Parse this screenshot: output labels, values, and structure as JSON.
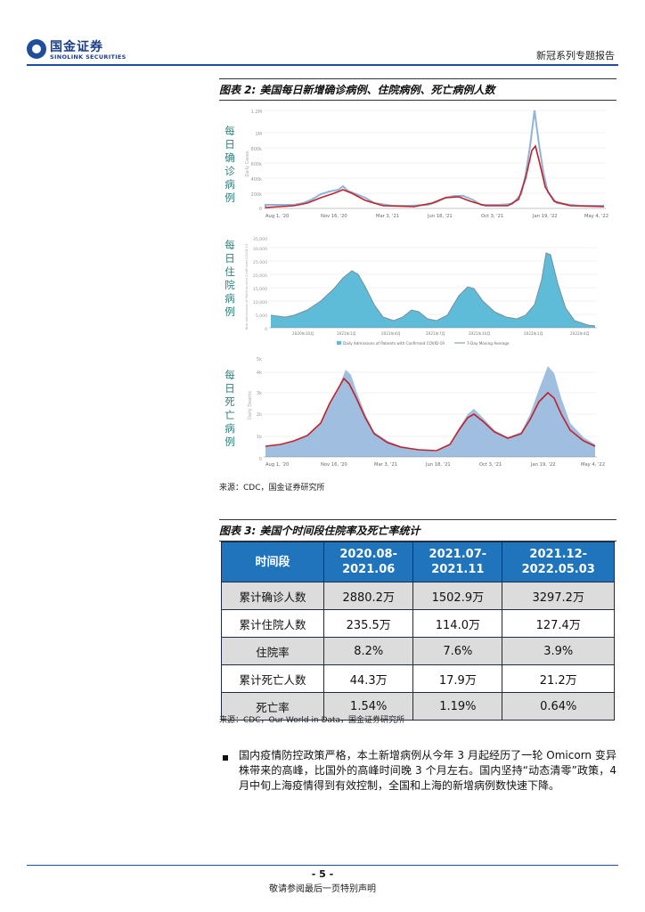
{
  "header": {
    "company_cn": "国金证券",
    "company_en": "SINOLINK SECURITIES",
    "series": "新冠系列专题报告"
  },
  "figure2": {
    "title": "图表 2:  美国每日新增确诊病例、住院病例、死亡病例人数",
    "source": "来源：CDC，国金证券研究所",
    "panels": [
      {
        "label": "每日确诊病例",
        "ylabel": "Daily Cases",
        "yticks": [
          "0",
          "200k",
          "400k",
          "600k",
          "800k",
          "1M",
          "1.2M"
        ],
        "xticks": [
          "Aug 1, '20",
          "Nov 16, '20",
          "Mar 3, '21",
          "Jun 18, '21",
          "Oct 3, '21",
          "Jan 19, '22",
          "May 4, '22"
        ]
      },
      {
        "label": "每日住院病例",
        "ylabel": "New Admissions of Patients with Confirmed COVID-19",
        "yticks": [
          "0",
          "5,000",
          "10,000",
          "15,000",
          "20,000",
          "25,000",
          "30,000",
          "35,000"
        ],
        "xticks": [
          "2020年10月",
          "2021年1月",
          "2021年4月",
          "2021年7月",
          "2021年10月",
          "2022年1月",
          "2022年4月"
        ],
        "legend": [
          "Daily Admissions of Patients with Confirmed COVID-19",
          "7-Day Moving Average"
        ]
      },
      {
        "label": "每日死亡病例",
        "ylabel": "Daily Deaths",
        "yticks": [
          "0",
          "1k",
          "2k",
          "3k",
          "4k",
          "5k"
        ],
        "xticks": [
          "Aug 1, '20",
          "Nov 16, '20",
          "Mar 3, '21",
          "Jun 18, '21",
          "Oct 3, '21",
          "Jan 19, '22",
          "May 4, '22"
        ]
      }
    ]
  },
  "figure3": {
    "title": "图表 3:  美国个时间段住院率及死亡率统计",
    "source": "来源：CDC，Our World in Data，国金证券研究所",
    "columns": [
      "时间段",
      "2020.08-\n2021.06",
      "2021.07-\n2021.11",
      "2021.12-\n2022.05.03"
    ],
    "rows": [
      [
        "累计确诊人数",
        "2880.2万",
        "1502.9万",
        "3297.2万"
      ],
      [
        "累计住院人数",
        "235.5万",
        "114.0万",
        "127.4万"
      ],
      [
        "住院率",
        "8.2%",
        "7.6%",
        "3.9%"
      ],
      [
        "累计死亡人数",
        "44.3万",
        "17.9万",
        "21.2万"
      ],
      [
        "死亡率",
        "1.54%",
        "1.19%",
        "0.64%"
      ]
    ]
  },
  "body": {
    "paragraph": "国内疫情防控政策严格，本土新增病例从今年 3 月起经历了一轮 Omicorn 变异株带来的高峰，比国外的高峰时间晚 3 个月左右。国内坚持“动态清零”政策，4 月中旬上海疫情得到有效控制，全国和上海的新增病例数快速下降。"
  },
  "footer": {
    "page_number": "- 5 -",
    "disclaimer": "敬请参阅最后一页特别声明"
  },
  "colors": {
    "brand_blue": "#1f4e9a",
    "table_header": "#1f74bb",
    "bar_blue": "#8fb3d9",
    "line_red": "#c0222a",
    "area_teal": "#5fbcd8",
    "label_teal": "#2c7f7a"
  }
}
